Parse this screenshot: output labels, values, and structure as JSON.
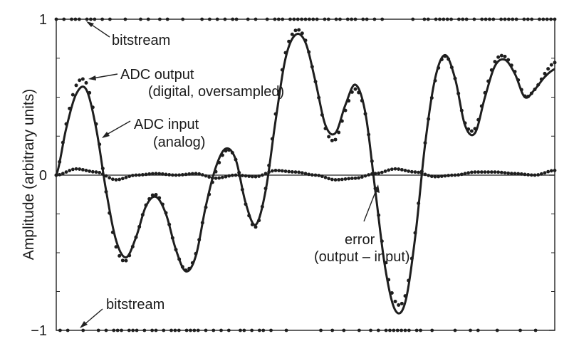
{
  "chart_data": {
    "type": "line",
    "title": "",
    "xlabel": "",
    "ylabel": "Amplitude (arbitrary units)",
    "ylim": [
      -1,
      1
    ],
    "xlim": [
      0,
      1
    ],
    "yticks": [
      {
        "value": 1,
        "label": "1"
      },
      {
        "value": 0,
        "label": "0"
      },
      {
        "value": -1,
        "label": "−1"
      }
    ],
    "grid": false,
    "series": [
      {
        "name": "ADC input (analog)",
        "style": "solid-line",
        "x": [
          0,
          0.02,
          0.04,
          0.06,
          0.08,
          0.1,
          0.12,
          0.14,
          0.16,
          0.18,
          0.2,
          0.22,
          0.24,
          0.26,
          0.28,
          0.3,
          0.32,
          0.34,
          0.36,
          0.38,
          0.4,
          0.42,
          0.44,
          0.46,
          0.48,
          0.5,
          0.52,
          0.54,
          0.56,
          0.58,
          0.6,
          0.62,
          0.64,
          0.66,
          0.68,
          0.7,
          0.72,
          0.74,
          0.76,
          0.78,
          0.8,
          0.82,
          0.84,
          0.86,
          0.88,
          0.9,
          0.92,
          0.94,
          0.96,
          0.98,
          1.0
        ],
        "y": [
          0.0,
          0.3,
          0.52,
          0.55,
          0.3,
          -0.1,
          -0.42,
          -0.53,
          -0.4,
          -0.2,
          -0.14,
          -0.25,
          -0.48,
          -0.62,
          -0.52,
          -0.2,
          0.05,
          0.17,
          0.1,
          -0.18,
          -0.32,
          -0.1,
          0.35,
          0.75,
          0.9,
          0.85,
          0.6,
          0.32,
          0.27,
          0.45,
          0.58,
          0.4,
          -0.1,
          -0.6,
          -0.87,
          -0.82,
          -0.4,
          0.2,
          0.62,
          0.77,
          0.62,
          0.32,
          0.27,
          0.5,
          0.7,
          0.74,
          0.65,
          0.5,
          0.55,
          0.63,
          0.68
        ]
      },
      {
        "name": "ADC output (digital, oversampled)",
        "style": "dots-on-line",
        "offset_note": ""
      },
      {
        "name": "error (output – input)",
        "style": "dots",
        "x": [
          0,
          0.04,
          0.08,
          0.12,
          0.16,
          0.2,
          0.24,
          0.28,
          0.32,
          0.36,
          0.4,
          0.44,
          0.48,
          0.52,
          0.56,
          0.6,
          0.64,
          0.68,
          0.72,
          0.76,
          0.8,
          0.84,
          0.88,
          0.92,
          0.96,
          1.0
        ],
        "y": [
          0.0,
          0.04,
          0.02,
          -0.03,
          0.0,
          0.01,
          0.0,
          0.01,
          -0.02,
          0.0,
          -0.01,
          0.03,
          0.02,
          0.0,
          -0.03,
          -0.02,
          0.01,
          0.04,
          0.02,
          -0.01,
          0.0,
          0.02,
          0.02,
          0.01,
          0.0,
          0.03
        ]
      }
    ],
    "bitstream_top": {
      "value": 1
    },
    "bitstream_bottom": {
      "value": -1
    },
    "annotations": [
      {
        "text": "bitstream",
        "lines": [
          "bitstream"
        ]
      },
      {
        "text": "ADC output",
        "lines": [
          "ADC output",
          "(digital, oversampled)"
        ]
      },
      {
        "text": "ADC input",
        "lines": [
          "ADC input",
          "(analog)"
        ]
      },
      {
        "text": "error",
        "lines": [
          "error",
          "(output – input)"
        ]
      },
      {
        "text": "bitstream",
        "lines": [
          "bitstream"
        ]
      }
    ]
  }
}
